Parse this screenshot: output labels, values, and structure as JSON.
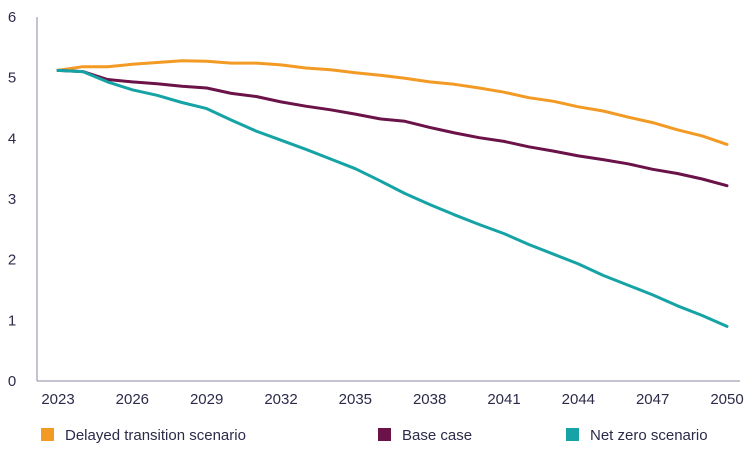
{
  "chart_data": {
    "type": "line",
    "title": "",
    "xlabel": "",
    "ylabel": "",
    "xlim": [
      2023,
      2050
    ],
    "ylim": [
      0,
      6
    ],
    "x_ticks": [
      "2023",
      "2026",
      "2029",
      "2032",
      "2035",
      "2038",
      "2041",
      "2044",
      "2047",
      "2050"
    ],
    "y_ticks": [
      "0",
      "1",
      "2",
      "3",
      "4",
      "5",
      "6"
    ],
    "grid": false,
    "legend_position": "bottom",
    "x": [
      2023,
      2024,
      2025,
      2026,
      2027,
      2028,
      2029,
      2030,
      2031,
      2032,
      2033,
      2034,
      2035,
      2036,
      2037,
      2038,
      2039,
      2040,
      2041,
      2042,
      2043,
      2044,
      2045,
      2046,
      2047,
      2048,
      2049,
      2050
    ],
    "series": [
      {
        "name": "Delayed transition scenario",
        "color": "#f39a24",
        "values": [
          5.12,
          5.18,
          5.18,
          5.22,
          5.25,
          5.28,
          5.27,
          5.24,
          5.24,
          5.21,
          5.16,
          5.13,
          5.08,
          5.04,
          4.99,
          4.93,
          4.89,
          4.83,
          4.76,
          4.67,
          4.61,
          4.52,
          4.45,
          4.35,
          4.26,
          4.14,
          4.04,
          3.9
        ]
      },
      {
        "name": "Base case",
        "color": "#6b1349",
        "values": [
          5.12,
          5.1,
          4.97,
          4.93,
          4.9,
          4.86,
          4.83,
          4.74,
          4.69,
          4.6,
          4.53,
          4.47,
          4.4,
          4.32,
          4.28,
          4.18,
          4.09,
          4.01,
          3.95,
          3.86,
          3.79,
          3.71,
          3.65,
          3.58,
          3.49,
          3.42,
          3.33,
          3.22
        ]
      },
      {
        "name": "Net zero scenario",
        "color": "#16a3a5",
        "values": [
          5.12,
          5.1,
          4.93,
          4.8,
          4.71,
          4.59,
          4.49,
          4.3,
          4.12,
          3.97,
          3.82,
          3.66,
          3.5,
          3.3,
          3.09,
          2.91,
          2.74,
          2.58,
          2.43,
          2.25,
          2.09,
          1.93,
          1.74,
          1.58,
          1.42,
          1.24,
          1.08,
          0.9
        ]
      }
    ]
  }
}
